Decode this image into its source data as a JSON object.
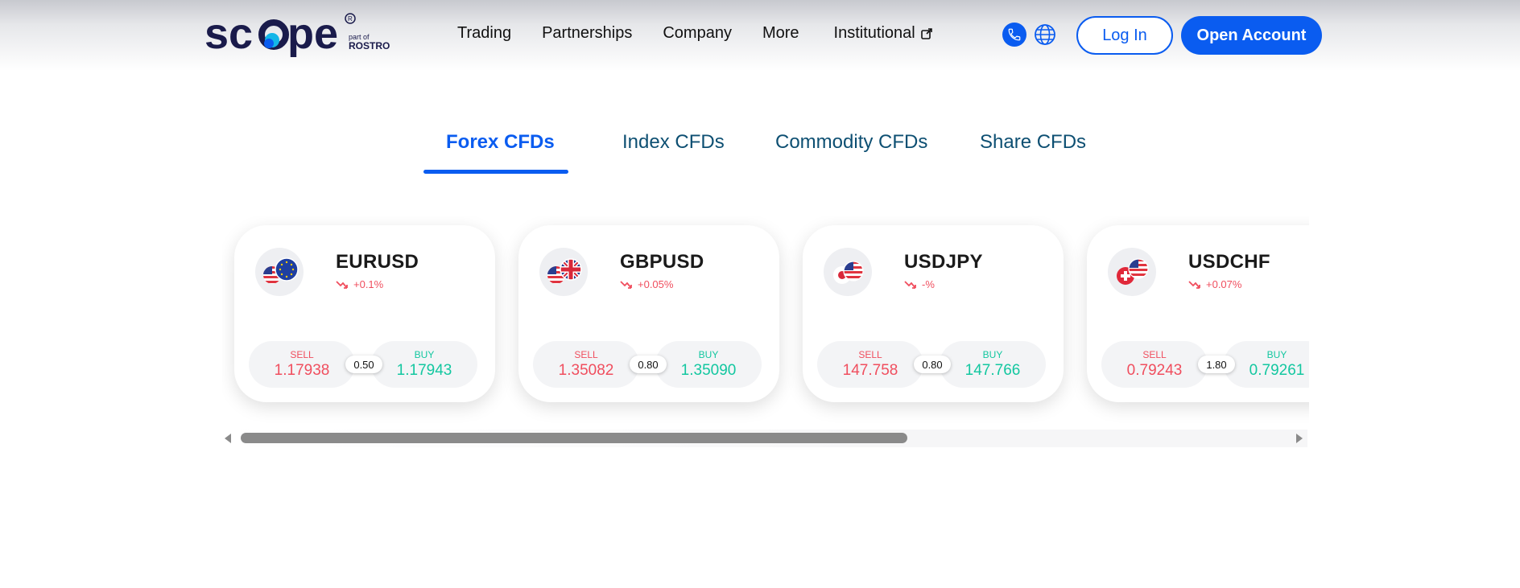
{
  "brand": {
    "logo_text": "scope",
    "logo_sub_small": "part of",
    "logo_sub_big": "ROSTRO"
  },
  "nav": {
    "items": [
      "Trading",
      "Partnerships",
      "Company",
      "More",
      "Institutional"
    ]
  },
  "header": {
    "login_label": "Log In",
    "open_account_label": "Open Account"
  },
  "tabs": {
    "items": [
      "Forex CFDs",
      "Index CFDs",
      "Commodity CFDs",
      "Share CFDs"
    ],
    "active": "Forex CFDs"
  },
  "instruments": [
    {
      "symbol": "EURUSD",
      "change": "+0.1%",
      "sell_label": "SELL",
      "sell": "1.17938",
      "spread": "0.50",
      "buy_label": "BUY",
      "buy": "1.17943",
      "flags": [
        "us",
        "eu"
      ]
    },
    {
      "symbol": "GBPUSD",
      "change": "+0.05%",
      "sell_label": "SELL",
      "sell": "1.35082",
      "spread": "0.80",
      "buy_label": "BUY",
      "buy": "1.35090",
      "flags": [
        "us",
        "gb"
      ]
    },
    {
      "symbol": "USDJPY",
      "change": "-%",
      "sell_label": "SELL",
      "sell": "147.758",
      "spread": "0.80",
      "buy_label": "BUY",
      "buy": "147.766",
      "flags": [
        "jp",
        "us"
      ]
    },
    {
      "symbol": "USDCHF",
      "change": "+0.07%",
      "sell_label": "SELL",
      "sell": "0.79243",
      "spread": "1.80",
      "buy_label": "BUY",
      "buy": "0.79261",
      "flags": [
        "ch",
        "us"
      ]
    }
  ],
  "colors": {
    "accent": "#0a5cf0",
    "sell": "#f04e5e",
    "buy": "#13c7a0",
    "tab_inactive": "#0d4f72"
  },
  "scrollbar": {
    "position_fraction": 0.0,
    "visible_fraction": 0.62
  }
}
